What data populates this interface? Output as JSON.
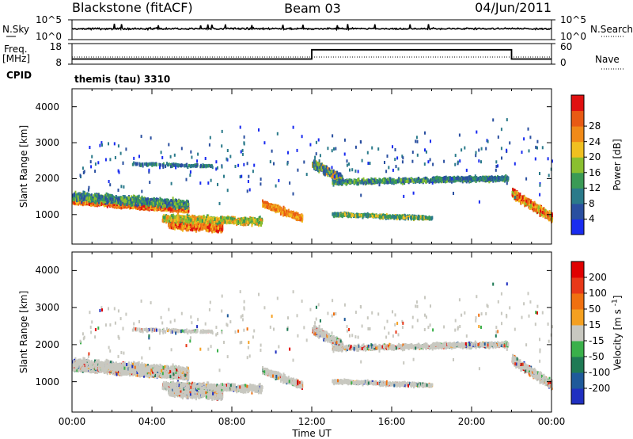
{
  "header": {
    "station": "Blackstone (fitACF)",
    "beam": "Beam 03",
    "date": "04/Jun/2011"
  },
  "chart_data": [
    {
      "type": "line",
      "name": "noise",
      "left_label": "N.Sky",
      "left_ticks": [
        "10^5",
        "10^0"
      ],
      "right_label": "N.Search",
      "right_ticks": [
        "10^5",
        "10^0"
      ],
      "x": [
        "00:00",
        "24:00"
      ],
      "series": [
        {
          "name": "N.Sky",
          "style": "solid",
          "level": 0.55
        },
        {
          "name": "N.Search",
          "style": "dotted"
        }
      ]
    },
    {
      "type": "line",
      "name": "frequency",
      "left_label": "Freq.",
      "left_unit": "[MHz]",
      "left_ticks": [
        "18",
        "8"
      ],
      "right_label": "Nave",
      "right_ticks": [
        "60",
        "0"
      ],
      "series": [
        {
          "name": "Freq.",
          "style": "solid",
          "x_hours": [
            0,
            12.0,
            12.0,
            22.0,
            22.0,
            24.0
          ],
          "values": [
            10.5,
            10.5,
            15.0,
            15.0,
            10.5,
            10.5
          ]
        },
        {
          "name": "Nave",
          "style": "dotted",
          "level": 0.5
        }
      ]
    },
    {
      "type": "heatmap",
      "name": "power",
      "cpid_label": "CPID",
      "cpid_text": "themis (tau) 3310",
      "ylabel": "Slant Range [km]",
      "yticks": [
        "1000",
        "2000",
        "3000",
        "4000"
      ],
      "ylim": [
        180,
        4500
      ],
      "colorbar_label": "Power [dB]",
      "colorbar_ticks": [
        "4",
        "8",
        "12",
        "16",
        "20",
        "24",
        "28"
      ],
      "colors": [
        "#1a2cf0",
        "#2a4fa0",
        "#2a7a8a",
        "#3a9a55",
        "#8abf30",
        "#f0c020",
        "#f08a18",
        "#e85a14",
        "#e01010"
      ]
    },
    {
      "type": "heatmap",
      "name": "velocity",
      "ylabel": "Slant Range [km]",
      "yticks": [
        "1000",
        "2000",
        "3000",
        "4000"
      ],
      "ylim": [
        180,
        4500
      ],
      "xlabel": "Time UT",
      "xticks": [
        "00:00",
        "04:00",
        "08:00",
        "12:00",
        "16:00",
        "20:00",
        "00:00"
      ],
      "xlim_hours": [
        0,
        24
      ],
      "colorbar_label": "Velocity [m s",
      "colorbar_label_sup": "-1",
      "colorbar_label_end": "]",
      "colorbar_ticks": [
        "200",
        "100",
        "50",
        "15",
        "-15",
        "-50",
        "-100",
        "-200"
      ],
      "colors": [
        "#2030c0",
        "#1f5a9a",
        "#1f7a55",
        "#3ab04a",
        "#c8c8c0",
        "#f5a020",
        "#f07010",
        "#e83818",
        "#e00000"
      ]
    }
  ]
}
